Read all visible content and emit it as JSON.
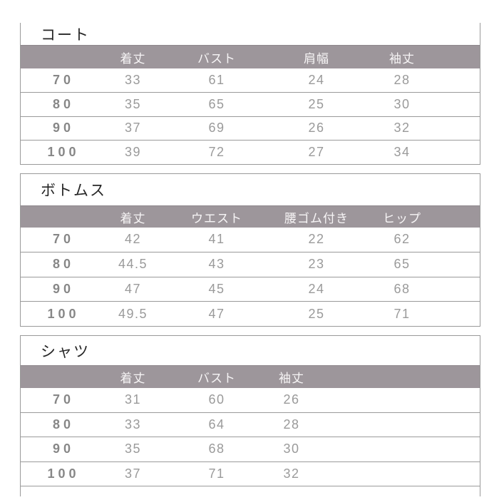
{
  "colors": {
    "header_background": "#9d969b",
    "header_text": "#f7f5f6",
    "title_text": "#262626",
    "value_text": "#9a9a9a",
    "size_text": "#878787",
    "rule_line": "#9a9a9a"
  },
  "tables": [
    {
      "title": "コート",
      "columns": [
        "着丈",
        "バスト",
        "肩幅",
        "袖丈"
      ],
      "rows": [
        {
          "size": "70",
          "values": [
            "33",
            "61",
            "24",
            "28"
          ]
        },
        {
          "size": "80",
          "values": [
            "35",
            "65",
            "25",
            "30"
          ]
        },
        {
          "size": "90",
          "values": [
            "37",
            "69",
            "26",
            "32"
          ]
        },
        {
          "size": "100",
          "values": [
            "39",
            "72",
            "27",
            "34"
          ]
        }
      ]
    },
    {
      "title": "ボトムス",
      "columns": [
        "着丈",
        "ウエスト",
        "腰ゴム付き",
        "ヒップ"
      ],
      "rows": [
        {
          "size": "70",
          "values": [
            "42",
            "41",
            "22",
            "62"
          ]
        },
        {
          "size": "80",
          "values": [
            "44.5",
            "43",
            "23",
            "65"
          ]
        },
        {
          "size": "90",
          "values": [
            "47",
            "45",
            "24",
            "68"
          ]
        },
        {
          "size": "100",
          "values": [
            "49.5",
            "47",
            "25",
            "71"
          ]
        }
      ]
    },
    {
      "title": "シャツ",
      "columns": [
        "着丈",
        "バスト",
        "袖丈"
      ],
      "rows": [
        {
          "size": "70",
          "values": [
            "31",
            "60",
            "26"
          ]
        },
        {
          "size": "80",
          "values": [
            "33",
            "64",
            "28"
          ]
        },
        {
          "size": "90",
          "values": [
            "35",
            "68",
            "30"
          ]
        },
        {
          "size": "100",
          "values": [
            "37",
            "71",
            "32"
          ]
        }
      ]
    }
  ]
}
